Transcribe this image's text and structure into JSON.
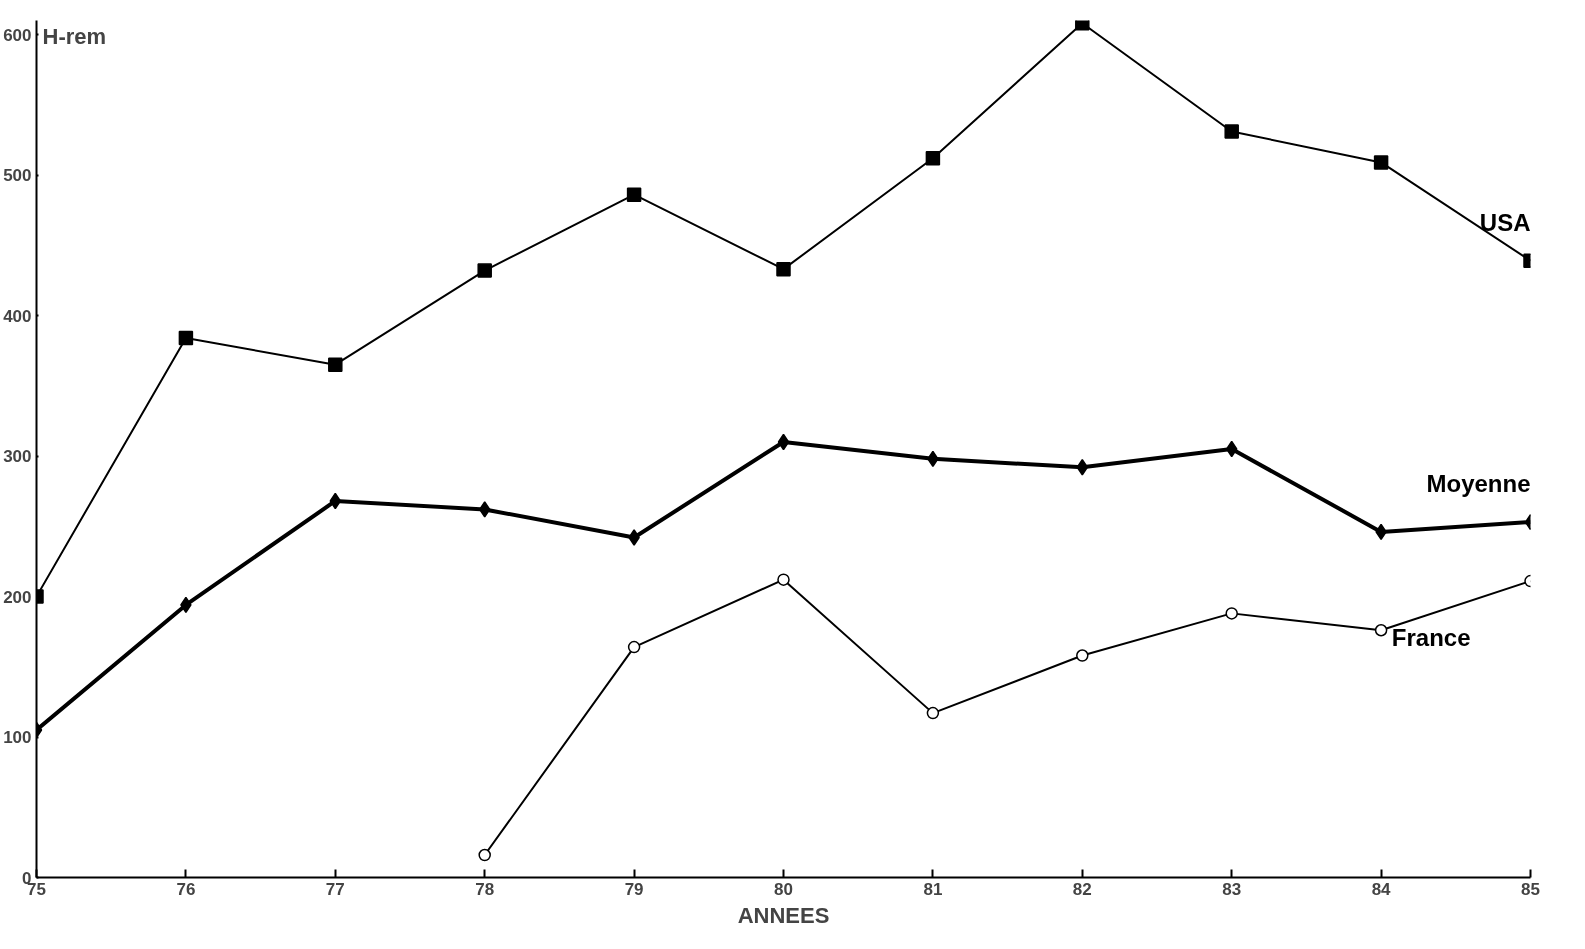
{
  "chart_data": {
    "type": "line",
    "xlabel": "ANNEES",
    "ylabel": "H-rem",
    "x": [
      75,
      76,
      77,
      78,
      79,
      80,
      81,
      82,
      83,
      84,
      85
    ],
    "series": [
      {
        "name": "USA",
        "color": "#000000",
        "marker": "square",
        "values": [
          200,
          384,
          365,
          432,
          486,
          433,
          512,
          608,
          531,
          509,
          439
        ]
      },
      {
        "name": "Moyenne",
        "color": "#000000",
        "marker": "diamond",
        "values": [
          105,
          194,
          268,
          262,
          242,
          310,
          298,
          292,
          305,
          246,
          253
        ]
      },
      {
        "name": "France",
        "color": "#000000",
        "marker": "circle",
        "values": [
          null,
          null,
          null,
          16,
          164,
          212,
          117,
          158,
          188,
          176,
          211
        ]
      }
    ],
    "xlim": [
      75,
      85
    ],
    "ylim": [
      0,
      610
    ],
    "xticks": [
      75,
      76,
      77,
      78,
      79,
      80,
      81,
      82,
      83,
      84,
      85
    ],
    "yticks": [
      0,
      100,
      200,
      300,
      400,
      500,
      600
    ],
    "grid": false
  }
}
